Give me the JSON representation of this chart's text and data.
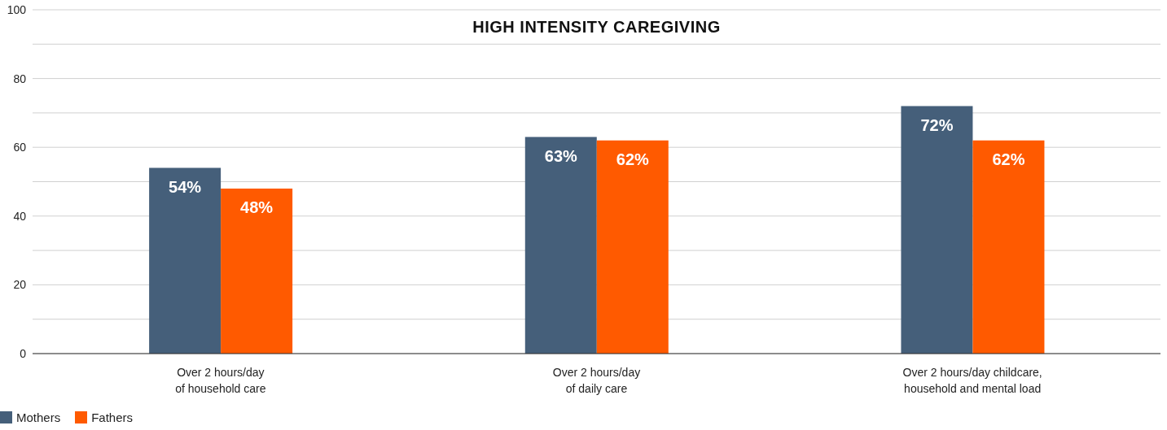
{
  "chart_data": {
    "type": "bar",
    "title": "HIGH INTENSITY CAREGIVING",
    "categories": [
      "Over 2 hours/day\nof household care",
      "Over 2 hours/day\nof daily care",
      "Over 2 hours/day childcare,\nhousehold and mental load"
    ],
    "series": [
      {
        "name": "Mothers",
        "color": "#455f7a",
        "values": [
          54,
          63,
          72
        ],
        "value_labels": [
          "54%",
          "63%",
          "72%"
        ]
      },
      {
        "name": "Fathers",
        "color": "#ff5a00",
        "values": [
          48,
          62,
          62
        ],
        "value_labels": [
          "48%",
          "62%",
          "62%"
        ]
      }
    ],
    "ylim": [
      0,
      100
    ],
    "yticks": [
      0,
      {
        "value": 10,
        "label": null
      },
      20,
      {
        "value": 30,
        "label": null
      },
      40,
      {
        "value": 50,
        "label": null
      },
      60,
      {
        "value": 70,
        "label": null
      },
      80,
      {
        "value": 90,
        "label": null
      },
      100
    ],
    "grid": "y",
    "legend": "bottom left"
  }
}
